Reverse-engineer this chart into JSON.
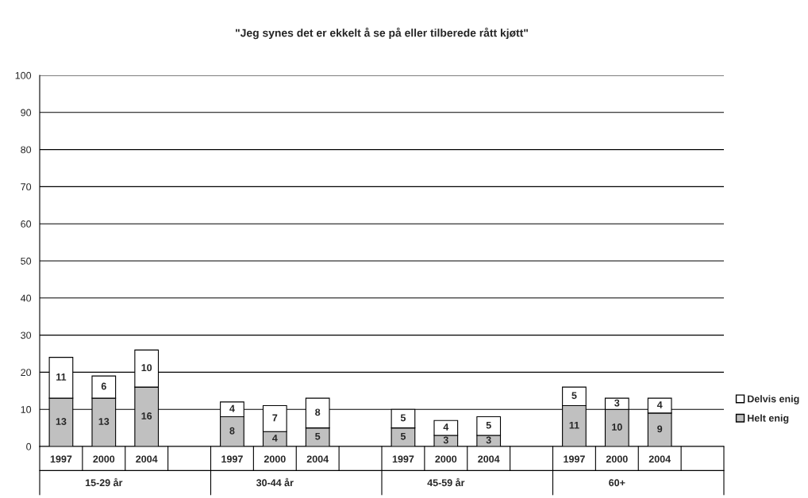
{
  "chart_data": {
    "type": "bar",
    "title": "\"Jeg synes det er ekkelt å se på eller tilberede rått kjøtt\"",
    "categories": [
      "1997",
      "2000",
      "2004",
      null,
      "1997",
      "2000",
      "2004",
      null,
      "1997",
      "2000",
      "2004",
      null,
      "1997",
      "2000",
      "2004",
      null
    ],
    "series": [
      {
        "name": "Helt enig",
        "color": "#c0c0c0",
        "values": [
          13,
          13,
          16,
          null,
          8,
          4,
          5,
          null,
          5,
          3,
          3,
          null,
          11,
          10,
          9,
          null
        ]
      },
      {
        "name": "Delvis enig",
        "color": "#ffffff",
        "values": [
          11,
          6,
          10,
          null,
          4,
          7,
          8,
          null,
          5,
          4,
          5,
          null,
          5,
          3,
          4,
          null
        ]
      }
    ],
    "stacked": true,
    "data_labels": true,
    "ylim": [
      0,
      100
    ],
    "yticks": [
      0,
      10,
      20,
      30,
      40,
      50,
      60,
      70,
      80,
      90,
      100
    ],
    "grid": "y",
    "legend": "right",
    "annotations": [
      "15-29 år",
      "30-44 år",
      "45-59 år",
      "60+"
    ]
  }
}
